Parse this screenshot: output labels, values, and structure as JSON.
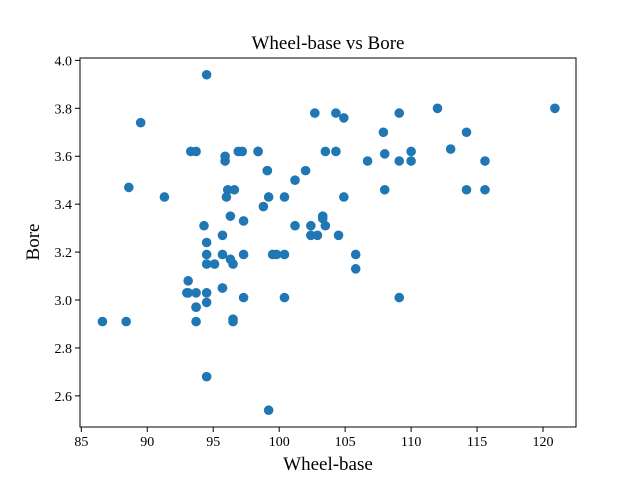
{
  "chart_data": {
    "type": "scatter",
    "title": "Wheel-base vs Bore",
    "xlabel": "Wheel-base",
    "ylabel": "Bore",
    "xlim": [
      84.9,
      122.5
    ],
    "ylim": [
      2.47,
      4.01
    ],
    "xticks": [
      85,
      90,
      95,
      100,
      105,
      110,
      115,
      120
    ],
    "yticks": [
      2.6,
      2.8,
      3.0,
      3.2,
      3.4,
      3.6,
      3.8,
      4.0
    ],
    "grid": false,
    "legend": "none",
    "color": "#1f77b4",
    "points": [
      [
        86.6,
        2.91
      ],
      [
        88.4,
        2.91
      ],
      [
        88.6,
        3.47
      ],
      [
        89.5,
        3.74
      ],
      [
        91.3,
        3.43
      ],
      [
        93.0,
        3.03
      ],
      [
        93.1,
        3.08
      ],
      [
        93.1,
        3.03
      ],
      [
        93.3,
        3.62
      ],
      [
        93.7,
        3.62
      ],
      [
        93.7,
        2.97
      ],
      [
        93.7,
        3.03
      ],
      [
        93.7,
        2.91
      ],
      [
        93.7,
        2.97
      ],
      [
        94.3,
        3.31
      ],
      [
        94.5,
        3.94
      ],
      [
        94.5,
        3.24
      ],
      [
        94.5,
        3.19
      ],
      [
        94.5,
        3.15
      ],
      [
        94.5,
        2.99
      ],
      [
        94.5,
        3.03
      ],
      [
        94.5,
        2.68
      ],
      [
        95.1,
        3.15
      ],
      [
        95.7,
        3.27
      ],
      [
        95.7,
        3.19
      ],
      [
        95.7,
        3.05
      ],
      [
        95.7,
        3.05
      ],
      [
        95.9,
        3.6
      ],
      [
        95.9,
        3.58
      ],
      [
        96.0,
        3.43
      ],
      [
        96.1,
        3.46
      ],
      [
        96.3,
        3.35
      ],
      [
        96.3,
        3.17
      ],
      [
        96.5,
        3.15
      ],
      [
        96.5,
        2.92
      ],
      [
        96.5,
        2.91
      ],
      [
        96.6,
        3.46
      ],
      [
        96.9,
        3.62
      ],
      [
        97.2,
        3.62
      ],
      [
        97.3,
        3.33
      ],
      [
        97.3,
        3.19
      ],
      [
        97.3,
        3.01
      ],
      [
        98.4,
        3.62
      ],
      [
        98.4,
        3.62
      ],
      [
        98.8,
        3.39
      ],
      [
        99.1,
        3.54
      ],
      [
        99.1,
        3.54
      ],
      [
        99.2,
        3.43
      ],
      [
        99.5,
        3.19
      ],
      [
        99.8,
        3.19
      ],
      [
        99.2,
        2.54
      ],
      [
        100.4,
        3.43
      ],
      [
        100.4,
        3.19
      ],
      [
        100.4,
        3.01
      ],
      [
        101.2,
        3.31
      ],
      [
        101.2,
        3.5
      ],
      [
        102.0,
        3.54
      ],
      [
        102.4,
        3.31
      ],
      [
        102.4,
        3.27
      ],
      [
        102.7,
        3.78
      ],
      [
        102.9,
        3.27
      ],
      [
        103.3,
        3.35
      ],
      [
        103.3,
        3.34
      ],
      [
        103.5,
        3.31
      ],
      [
        103.5,
        3.62
      ],
      [
        104.3,
        3.78
      ],
      [
        104.3,
        3.62
      ],
      [
        104.5,
        3.27
      ],
      [
        104.9,
        3.76
      ],
      [
        104.9,
        3.43
      ],
      [
        105.8,
        3.19
      ],
      [
        105.8,
        3.13
      ],
      [
        106.7,
        3.58
      ],
      [
        107.9,
        3.7
      ],
      [
        108.0,
        3.61
      ],
      [
        108.0,
        3.46
      ],
      [
        109.1,
        3.78
      ],
      [
        109.1,
        3.58
      ],
      [
        109.1,
        3.01
      ],
      [
        110.0,
        3.62
      ],
      [
        110.0,
        3.58
      ],
      [
        112.0,
        3.8
      ],
      [
        113.0,
        3.63
      ],
      [
        114.2,
        3.7
      ],
      [
        114.2,
        3.46
      ],
      [
        115.6,
        3.58
      ],
      [
        115.6,
        3.46
      ],
      [
        120.9,
        3.8
      ]
    ]
  }
}
